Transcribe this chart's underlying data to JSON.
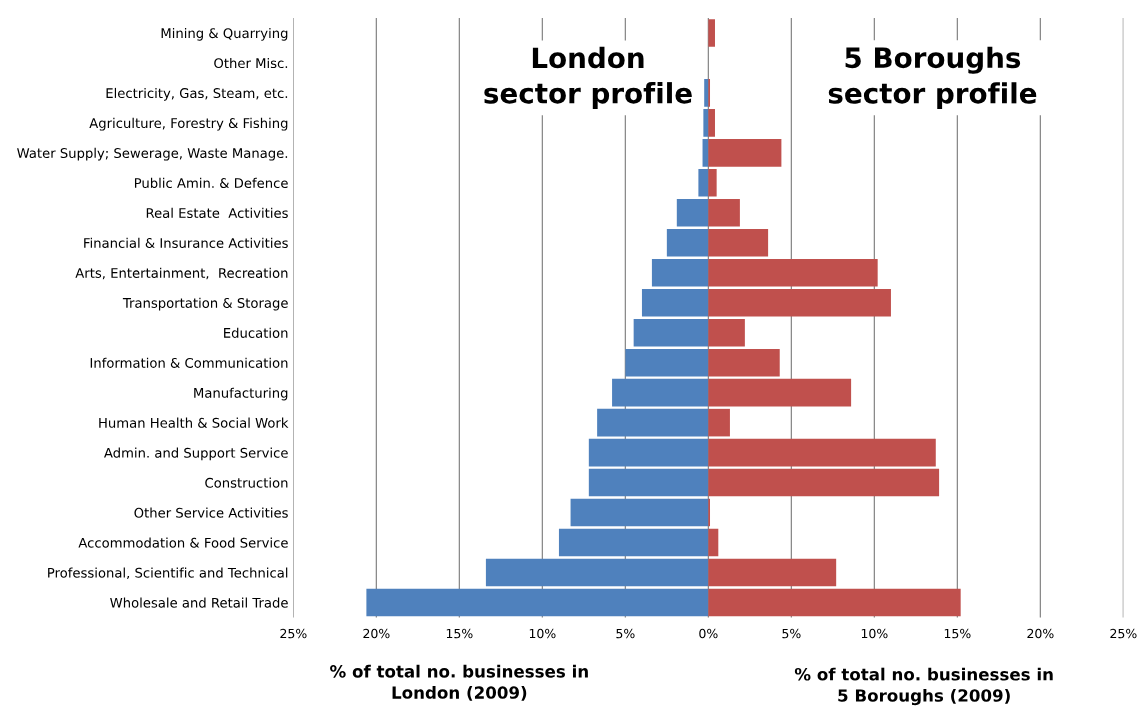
{
  "chart_data": {
    "type": "bar",
    "orientation": "horizontal",
    "stacked": true,
    "categories": [
      "Mining & Quarrying",
      "Other Misc.",
      "Electricity, Gas, Steam, etc.",
      "Agriculture, Forestry & Fishing",
      "Water Supply; Sewerage, Waste Manage.",
      "Public Amin. & Defence",
      "Real Estate  Activities",
      "Financial & Insurance Activities",
      "Arts, Entertainment,  Recreation",
      "Transportation & Storage",
      "Education",
      "Information & Communication",
      "Manufacturing",
      "Human Health & Social Work",
      "Admin. and Support Service",
      "Construction",
      "Other Service Activities",
      "Accommodation & Food Service",
      "Professional, Scientific and Technical",
      "Wholesale and Retail Trade"
    ],
    "series": [
      {
        "color": "#4f81bd",
        "values": [
          0,
          0,
          -0.25,
          -0.3,
          -0.35,
          -0.6,
          -1.9,
          -2.5,
          -3.4,
          -4.0,
          -4.5,
          -5.0,
          -5.8,
          -6.7,
          -7.2,
          -7.2,
          -8.3,
          -9.0,
          -13.4,
          -20.6
        ]
      },
      {
        "color": "#c0504d",
        "values": [
          0.4,
          0,
          0.1,
          0.4,
          4.4,
          0.5,
          1.9,
          3.6,
          10.2,
          11.0,
          2.2,
          4.3,
          8.6,
          1.3,
          13.7,
          13.9,
          0.1,
          0.6,
          7.7,
          15.2
        ]
      }
    ],
    "xlim": [
      -25,
      25
    ],
    "xticks": [
      {
        "value": -25,
        "label": "25%"
      },
      {
        "value": -20,
        "label": "20%"
      },
      {
        "value": -15,
        "label": "15%"
      },
      {
        "value": -10,
        "label": "10%"
      },
      {
        "value": -5,
        "label": "5%"
      },
      {
        "value": 0,
        "label": "0%"
      },
      {
        "value": 5,
        "label": "5%"
      },
      {
        "value": 10,
        "label": "10%"
      },
      {
        "value": 15,
        "label": "15%"
      },
      {
        "value": 20,
        "label": "20%"
      },
      {
        "value": 25,
        "label": "25%"
      }
    ],
    "grid": "x",
    "annotations": [
      "London\nsector profile",
      "5 Boroughs\nsector profile",
      "% of total no. businesses in\nLondon (2009)",
      "% of total no. businesses in\n5 Boroughs (2009)"
    ]
  }
}
